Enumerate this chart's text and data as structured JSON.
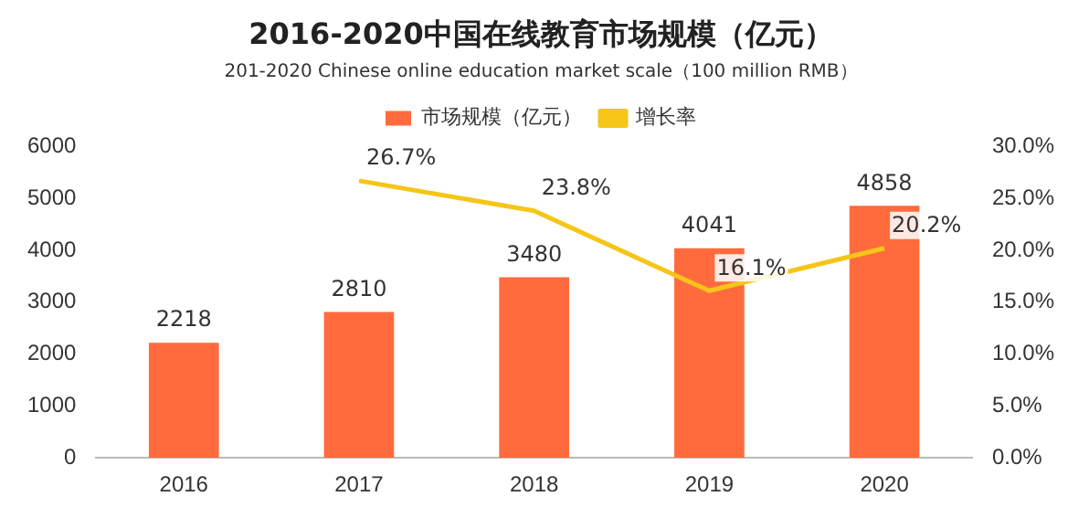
{
  "chart_data": {
    "type": "bar",
    "title": "2016-2020中国在线教育市场规模（亿元）",
    "subtitle": "201-2020 Chinese online education market scale（100 million RMB）",
    "categories": [
      "2016",
      "2017",
      "2018",
      "2019",
      "2020"
    ],
    "series": [
      {
        "name": "市场规模（亿元）",
        "color": "#ff6b3d",
        "values": [
          2218,
          2810,
          3480,
          4041,
          4858
        ],
        "value_labels": [
          "2218",
          "2810",
          "3480",
          "4041",
          "4858"
        ]
      },
      {
        "name": "增长率",
        "type": "line",
        "axis": "y2",
        "color": "#f5c518",
        "values": [
          null,
          26.7,
          23.8,
          16.1,
          20.2
        ],
        "value_labels": [
          null,
          "26.7%",
          "23.8%",
          "16.1%",
          "20.2%"
        ]
      }
    ],
    "ylim": [
      0,
      6000
    ],
    "yticks": [
      0,
      1000,
      2000,
      3000,
      4000,
      5000,
      6000
    ],
    "y2lim": [
      0,
      30
    ],
    "y2ticks": [
      {
        "value": 0,
        "label": "0.0%"
      },
      {
        "value": 5,
        "label": "5.0%"
      },
      {
        "value": 10,
        "label": "10.0%"
      },
      {
        "value": 15,
        "label": "15.0%"
      },
      {
        "value": 20,
        "label": "20.0%"
      },
      {
        "value": 25,
        "label": "25.0%"
      },
      {
        "value": 30,
        "label": "30.0%"
      }
    ],
    "grid": false,
    "legend": "top",
    "marker": "none",
    "line_style": "solid"
  }
}
